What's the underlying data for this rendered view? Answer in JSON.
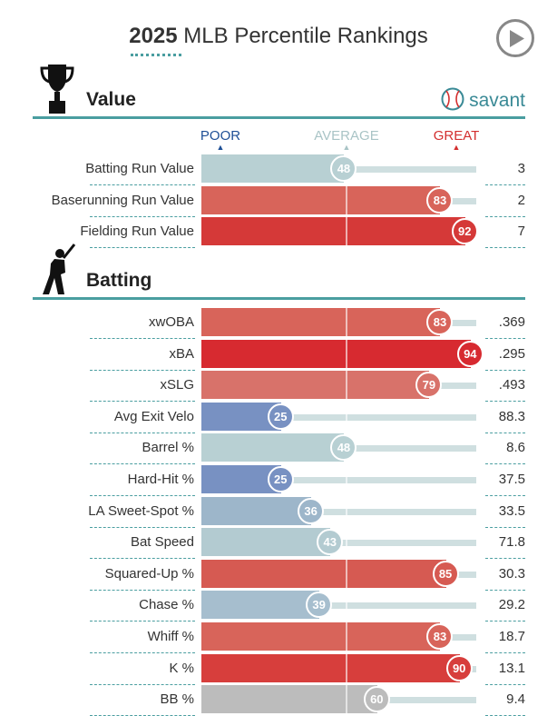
{
  "header": {
    "title_year": "2025",
    "title_rest": "MLB Percentile Rankings"
  },
  "colors": {
    "teal": "#4a9ea0",
    "poor": "#1e4f96",
    "average": "#a9c4c6",
    "great": "#d32f2f"
  },
  "scale": {
    "poor": "POOR",
    "average": "AVERAGE",
    "great": "GREAT"
  },
  "sections": [
    {
      "title": "Value",
      "icon": "trophy-icon",
      "brand": "savant",
      "rows": [
        {
          "label": "Batting Run Value",
          "pct": 48,
          "value": "3",
          "color": "#b8d0d3"
        },
        {
          "label": "Baserunning Run Value",
          "pct": 83,
          "value": "2",
          "color": "#d8645a"
        },
        {
          "label": "Fielding Run Value",
          "pct": 92,
          "value": "7",
          "color": "#d53938"
        }
      ]
    },
    {
      "title": "Batting",
      "icon": "batter-icon",
      "rows": [
        {
          "label": "xwOBA",
          "pct": 83,
          "value": ".369",
          "color": "#d8645a"
        },
        {
          "label": "xBA",
          "pct": 94,
          "value": ".295",
          "color": "#d72a30"
        },
        {
          "label": "xSLG",
          "pct": 79,
          "value": ".493",
          "color": "#d8726a"
        },
        {
          "label": "Avg Exit Velo",
          "pct": 25,
          "value": "88.3",
          "color": "#7891c2"
        },
        {
          "label": "Barrel %",
          "pct": 48,
          "value": "8.6",
          "color": "#b8d0d3"
        },
        {
          "label": "Hard-Hit %",
          "pct": 25,
          "value": "37.5",
          "color": "#7891c2"
        },
        {
          "label": "LA Sweet-Spot %",
          "pct": 36,
          "value": "33.5",
          "color": "#9db6ca"
        },
        {
          "label": "Bat Speed",
          "pct": 43,
          "value": "71.8",
          "color": "#b3cbd1"
        },
        {
          "label": "Squared-Up %",
          "pct": 85,
          "value": "30.3",
          "color": "#d65a52"
        },
        {
          "label": "Chase %",
          "pct": 39,
          "value": "29.2",
          "color": "#a6bece"
        },
        {
          "label": "Whiff %",
          "pct": 83,
          "value": "18.7",
          "color": "#d8645a"
        },
        {
          "label": "K %",
          "pct": 90,
          "value": "13.1",
          "color": "#d73e3c"
        },
        {
          "label": "BB %",
          "pct": 60,
          "value": "9.4",
          "color": "#bcbcbc"
        }
      ]
    }
  ]
}
